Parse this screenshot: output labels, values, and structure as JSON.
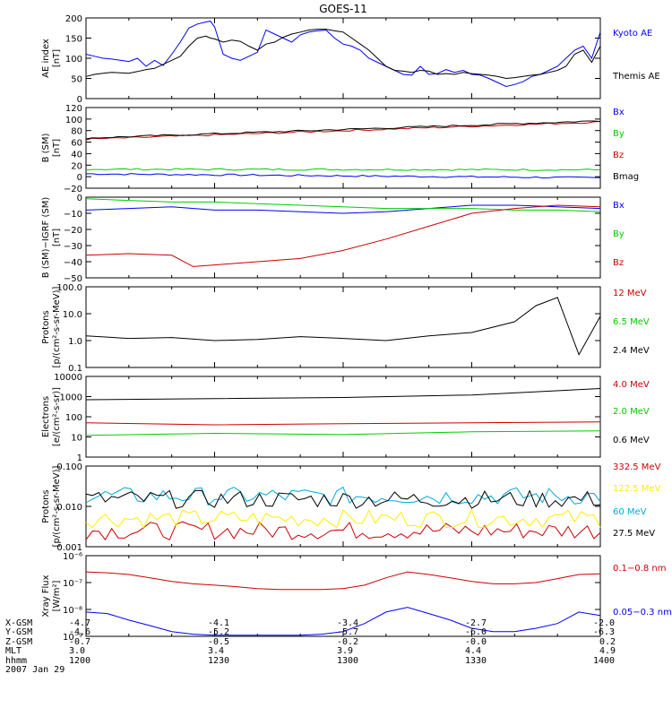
{
  "chart_data": [
    {
      "type": "line",
      "title": "GOES-11",
      "ylabel": [
        "AE index",
        "[nT]"
      ],
      "ylim": [
        0,
        200
      ],
      "yticks": [
        "0",
        "50",
        "100",
        "150",
        "200"
      ],
      "x_range_hhmm": [
        1200,
        1400
      ],
      "series": [
        {
          "name": "Kyoto AE",
          "color": "#0000ff",
          "x": [
            0,
            2,
            4,
            6,
            8,
            10,
            12,
            14,
            16,
            18,
            20,
            22,
            24,
            26,
            28,
            29,
            30,
            32,
            34,
            36,
            38,
            40,
            42,
            44,
            46,
            48,
            50,
            52,
            54,
            56,
            58,
            60,
            62,
            64,
            66,
            68,
            70,
            72,
            74,
            76,
            78,
            80,
            82,
            84,
            86,
            88,
            90,
            92,
            94,
            96,
            98,
            100,
            102,
            104,
            106,
            108,
            110,
            112,
            114,
            116,
            118,
            120
          ],
          "y": [
            110,
            105,
            100,
            98,
            95,
            92,
            100,
            80,
            95,
            82,
            110,
            140,
            175,
            185,
            190,
            192,
            178,
            110,
            100,
            95,
            105,
            115,
            170,
            160,
            150,
            140,
            158,
            165,
            168,
            170,
            150,
            135,
            130,
            120,
            100,
            90,
            80,
            70,
            60,
            58,
            80,
            60,
            62,
            72,
            65,
            70,
            60,
            58,
            50,
            40,
            30,
            35,
            42,
            55,
            60,
            70,
            80,
            100,
            120,
            130,
            100,
            165
          ]
        },
        {
          "name": "Themis AE",
          "color": "#000000",
          "x": [
            0,
            2,
            4,
            6,
            8,
            10,
            12,
            14,
            16,
            18,
            20,
            22,
            24,
            26,
            28,
            29,
            30,
            32,
            34,
            36,
            38,
            40,
            42,
            44,
            46,
            48,
            50,
            52,
            54,
            56,
            58,
            60,
            62,
            64,
            66,
            68,
            70,
            72,
            74,
            76,
            78,
            80,
            82,
            84,
            86,
            88,
            90,
            92,
            94,
            96,
            98,
            100,
            102,
            104,
            106,
            108,
            110,
            112,
            114,
            116,
            118,
            120
          ],
          "y": [
            55,
            60,
            63,
            65,
            64,
            63,
            67,
            72,
            75,
            85,
            95,
            105,
            130,
            150,
            155,
            150,
            148,
            140,
            145,
            142,
            130,
            120,
            135,
            140,
            152,
            160,
            165,
            170,
            172,
            172,
            168,
            165,
            150,
            135,
            120,
            100,
            80,
            70,
            68,
            65,
            70,
            68,
            60,
            62,
            60,
            65,
            62,
            60,
            58,
            55,
            50,
            52,
            55,
            58,
            60,
            65,
            70,
            80,
            110,
            120,
            90,
            130
          ]
        }
      ]
    },
    {
      "type": "line",
      "ylabel": [
        "B (SM)",
        "[nT]"
      ],
      "ylim": [
        -20,
        120
      ],
      "yticks": [
        "−20",
        "0",
        "20",
        "40",
        "60",
        "80",
        "100",
        "120"
      ],
      "series": [
        {
          "name": "Bx",
          "color": "#0000ff",
          "start": 5,
          "end": -2
        },
        {
          "name": "By",
          "color": "#00cc00",
          "start": 13,
          "end": 12
        },
        {
          "name": "Bz",
          "color": "#cc0000",
          "start": 65,
          "end": 95
        },
        {
          "name": "Bmag",
          "color": "#000000",
          "start": 67,
          "end": 97
        }
      ]
    },
    {
      "type": "line",
      "ylabel": [
        "B (SM)−IGRF (SM)",
        "[nT]"
      ],
      "ylim": [
        -50,
        0
      ],
      "yticks": [
        "−50",
        "−40",
        "−30",
        "−20",
        "−10",
        "0"
      ],
      "series": [
        {
          "name": "Bx",
          "color": "#0000ff",
          "x": [
            0,
            10,
            20,
            30,
            40,
            50,
            60,
            70,
            80,
            90,
            100,
            110,
            120
          ],
          "y": [
            -8,
            -7,
            -6,
            -8,
            -8,
            -9,
            -10,
            -9,
            -7,
            -5,
            -5,
            -6,
            -7
          ]
        },
        {
          "name": "By",
          "color": "#00cc00",
          "x": [
            0,
            10,
            20,
            30,
            40,
            50,
            60,
            70,
            80,
            90,
            100,
            110,
            120
          ],
          "y": [
            -1,
            -2,
            -3,
            -3,
            -4,
            -5,
            -6,
            -7,
            -7,
            -7,
            -8,
            -8,
            -9
          ]
        },
        {
          "name": "Bz",
          "color": "#cc0000",
          "x": [
            0,
            10,
            20,
            25,
            30,
            40,
            50,
            60,
            70,
            80,
            90,
            100,
            110,
            120
          ],
          "y": [
            -36,
            -35,
            -36,
            -43,
            -42,
            -40,
            -38,
            -33,
            -26,
            -18,
            -10,
            -7,
            -5,
            -6
          ]
        }
      ]
    },
    {
      "type": "line",
      "log_y": true,
      "ylabel": [
        "Protons",
        "[p/(cm²-s-sr-MeV)]"
      ],
      "ylim": [
        0.1,
        100
      ],
      "yticks": [
        "0.1",
        "1.0",
        "10.0",
        "100.0"
      ],
      "series": [
        {
          "name": "12 MeV",
          "color": "#cc0000",
          "x": [],
          "y": []
        },
        {
          "name": "6.5 MeV",
          "color": "#00cc00",
          "x": [],
          "y": []
        },
        {
          "name": "2.4 MeV",
          "color": "#000000",
          "x": [
            0,
            10,
            20,
            30,
            40,
            50,
            60,
            70,
            80,
            90,
            100,
            105,
            110,
            115,
            120
          ],
          "y": [
            1.5,
            1.2,
            1.3,
            1.0,
            1.1,
            1.4,
            1.2,
            1.0,
            1.5,
            2.0,
            5.0,
            20,
            40,
            0.3,
            8
          ]
        }
      ]
    },
    {
      "type": "line",
      "log_y": true,
      "ylabel": [
        "Electrons",
        "[e/(cm²-s-sr)]"
      ],
      "ylim": [
        1,
        10000
      ],
      "yticks": [
        "1",
        "10",
        "100",
        "1000",
        "10000"
      ],
      "series": [
        {
          "name": "4.0 MeV",
          "color": "#cc0000",
          "x": [
            0,
            30,
            60,
            90,
            120
          ],
          "y": [
            50,
            40,
            45,
            50,
            55
          ]
        },
        {
          "name": "2.0 MeV",
          "color": "#00cc00",
          "x": [
            0,
            30,
            60,
            90,
            120
          ],
          "y": [
            12,
            15,
            13,
            18,
            20
          ]
        },
        {
          "name": "0.6 MeV",
          "color": "#000000",
          "x": [
            0,
            30,
            60,
            90,
            120
          ],
          "y": [
            700,
            800,
            900,
            1200,
            2500
          ]
        }
      ]
    },
    {
      "type": "line",
      "log_y": true,
      "ylabel": [
        "Protons",
        "[p/(cm²-s-sr-MeV)]"
      ],
      "ylim": [
        0.001,
        0.1
      ],
      "yticks": [
        "0.001",
        "0.010",
        "0.100"
      ],
      "series": [
        {
          "name": "332.5 MeV",
          "color": "#cc0000",
          "level": 0.0025
        },
        {
          "name": "122.5 MeV",
          "color": "#ffee00",
          "level": 0.005
        },
        {
          "name": "60 MeV",
          "color": "#00aadd",
          "level": 0.018
        },
        {
          "name": "27.5 MeV",
          "color": "#000000",
          "level": 0.015
        }
      ]
    },
    {
      "type": "line",
      "log_y": true,
      "ylabel": [
        "Xray Flux",
        "[W/m²]"
      ],
      "ylim": [
        1e-09,
        1e-06
      ],
      "yticks": [
        "10⁻⁹",
        "10⁻⁸",
        "10⁻⁷",
        "10⁻⁶"
      ],
      "series": [
        {
          "name": "0.1−0.8 nm",
          "color": "#cc0000",
          "x": [
            0,
            5,
            10,
            15,
            20,
            25,
            30,
            35,
            40,
            45,
            50,
            55,
            60,
            65,
            70,
            75,
            80,
            85,
            90,
            95,
            100,
            105,
            110,
            115,
            120
          ],
          "y": [
            2.5e-07,
            2.3e-07,
            2e-07,
            1.5e-07,
            1.1e-07,
            9e-08,
            8e-08,
            7e-08,
            6e-08,
            5.5e-08,
            5.5e-08,
            5.5e-08,
            6e-08,
            8e-08,
            1.5e-07,
            2.5e-07,
            2e-07,
            1.5e-07,
            1.1e-07,
            9e-08,
            9e-08,
            1e-07,
            1.4e-07,
            2e-07,
            2.1e-07
          ]
        },
        {
          "name": "0.05−0.3 nm",
          "color": "#0000ff",
          "x": [
            0,
            5,
            10,
            15,
            20,
            25,
            30,
            35,
            40,
            45,
            50,
            55,
            60,
            65,
            70,
            75,
            80,
            85,
            90,
            95,
            100,
            105,
            110,
            115,
            120
          ],
          "y": [
            8e-09,
            7e-09,
            4e-09,
            2.5e-09,
            1.5e-09,
            1.2e-09,
            1.1e-09,
            1.1e-09,
            1.1e-09,
            1.1e-09,
            1.1e-09,
            1.2e-09,
            1.5e-09,
            3e-09,
            8e-09,
            1.2e-08,
            7e-09,
            4e-09,
            2e-09,
            1.5e-09,
            1.5e-09,
            2e-09,
            3e-09,
            8e-09,
            6e-09
          ]
        }
      ]
    }
  ],
  "footer": {
    "labels": [
      "X-GSM",
      "Y-GSM",
      "Z-GSM",
      "MLT",
      "hhmm",
      "2007 Jan 29"
    ],
    "columns": [
      [
        "-4.7",
        "-4.6",
        "-0.7",
        "3.0",
        "1200"
      ],
      [
        "-4.1",
        "-5.2",
        "-0.5",
        "3.4",
        "1230"
      ],
      [
        "-3.4",
        "-5.7",
        "-0.2",
        "3.9",
        "1300"
      ],
      [
        "-2.7",
        "-6.0",
        "-0.0",
        "4.4",
        "1330"
      ],
      [
        "-2.0",
        "-6.3",
        "0.2",
        "4.9",
        "1400"
      ]
    ]
  }
}
